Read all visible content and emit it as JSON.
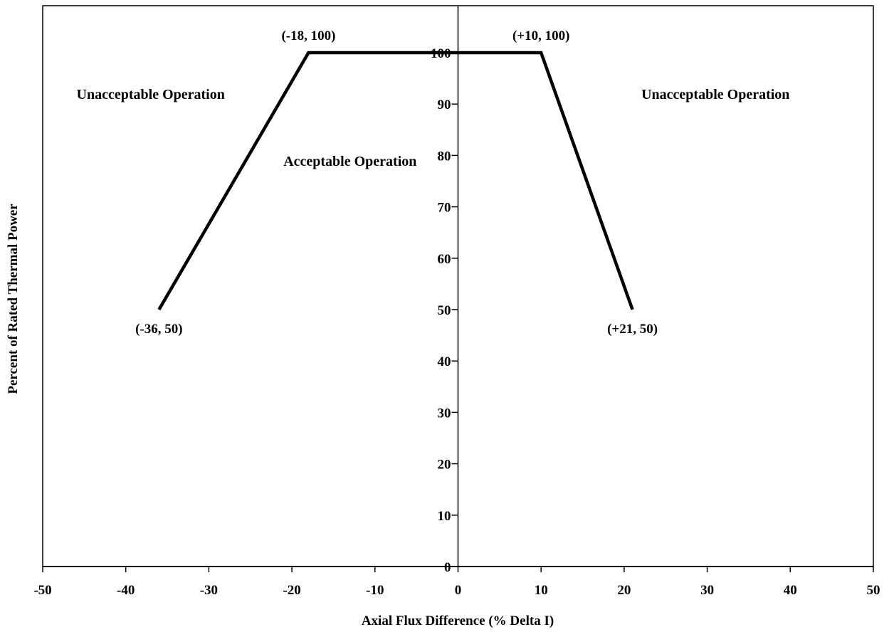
{
  "chart_data": {
    "type": "line",
    "title": "",
    "xlabel": "Axial Flux Difference (% Delta I)",
    "ylabel": "Percent of Rated Thermal Power",
    "xlim": [
      -50,
      50
    ],
    "ylim": [
      0,
      110
    ],
    "x_ticks": [
      -50,
      -40,
      -30,
      -20,
      -10,
      0,
      10,
      20,
      30,
      40,
      50
    ],
    "y_ticks": [
      0,
      10,
      20,
      30,
      40,
      50,
      60,
      70,
      80,
      90,
      100
    ],
    "grid": false,
    "series": [
      {
        "x": [
          -36,
          -18,
          10,
          21
        ],
        "y": [
          50,
          100,
          100,
          50
        ]
      }
    ],
    "point_labels": [
      {
        "text": "(-36, 50)",
        "x": -36,
        "y": 50
      },
      {
        "text": "(-18, 100)",
        "x": -18,
        "y": 100
      },
      {
        "text": "(+10, 100)",
        "x": 10,
        "y": 100
      },
      {
        "text": "(+21, 50)",
        "x": 21,
        "y": 50
      }
    ],
    "region_labels": [
      {
        "text": "Unacceptable Operation",
        "x": -37,
        "y": 91
      },
      {
        "text": "Acceptable Operation",
        "x": -13,
        "y": 78
      },
      {
        "text": "Unacceptable Operation",
        "x": 31,
        "y": 91
      }
    ]
  }
}
